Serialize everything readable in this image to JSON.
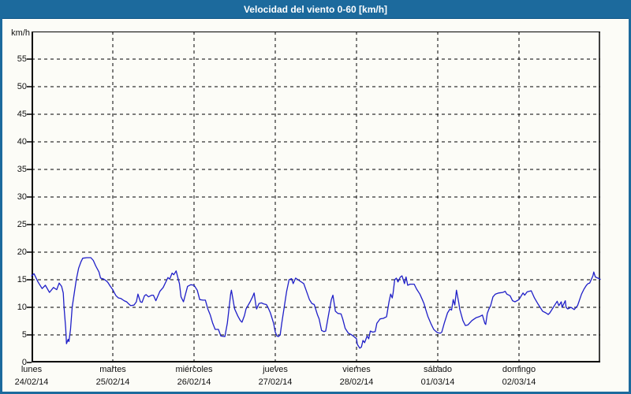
{
  "window": {
    "title": "Velocidad del viento 0-60 [km/h]",
    "accent_color": "#1c6a9d",
    "background_color": "#fcfcf7"
  },
  "chart_data": {
    "type": "line",
    "title": "Velocidad del viento 0-60 [km/h]",
    "ylabel": "km/h",
    "ylim": [
      0,
      60
    ],
    "yticks": [
      0,
      5,
      10,
      15,
      20,
      25,
      30,
      35,
      40,
      45,
      50,
      55
    ],
    "grid": {
      "style": "dashed",
      "color": "#000000",
      "horizontal": true,
      "vertical": true
    },
    "legend": "none",
    "x_axis": {
      "unit": "days",
      "range": [
        0,
        7
      ],
      "day_labels": [
        {
          "name": "lunes",
          "date": "24/02/14"
        },
        {
          "name": "martes",
          "date": "25/02/14"
        },
        {
          "name": "miércoles",
          "date": "26/02/14"
        },
        {
          "name": "jueves",
          "date": "27/02/14"
        },
        {
          "name": "viernes",
          "date": "28/02/14"
        },
        {
          "name": "sábado",
          "date": "01/03/14"
        },
        {
          "name": "domingo",
          "date": "02/03/14"
        }
      ]
    },
    "series": [
      {
        "name": "Velocidad del viento",
        "color": "#1f1fc8",
        "points": [
          [
            0.0,
            15.7
          ],
          [
            0.03,
            16.1
          ],
          [
            0.08,
            14.6
          ],
          [
            0.13,
            13.4
          ],
          [
            0.17,
            14.0
          ],
          [
            0.22,
            12.7
          ],
          [
            0.27,
            13.6
          ],
          [
            0.31,
            13.2
          ],
          [
            0.34,
            14.4
          ],
          [
            0.37,
            13.8
          ],
          [
            0.39,
            12.6
          ],
          [
            0.4,
            10.0
          ],
          [
            0.42,
            6.2
          ],
          [
            0.43,
            3.4
          ],
          [
            0.45,
            4.2
          ],
          [
            0.46,
            3.8
          ],
          [
            0.48,
            6.0
          ],
          [
            0.5,
            10.0
          ],
          [
            0.53,
            13.0
          ],
          [
            0.55,
            15.0
          ],
          [
            0.58,
            17.1
          ],
          [
            0.61,
            18.3
          ],
          [
            0.63,
            18.9
          ],
          [
            0.68,
            19.0
          ],
          [
            0.73,
            19.0
          ],
          [
            0.76,
            18.5
          ],
          [
            0.79,
            17.5
          ],
          [
            0.83,
            16.4
          ],
          [
            0.85,
            15.3
          ],
          [
            0.89,
            15.1
          ],
          [
            0.92,
            14.8
          ],
          [
            0.94,
            14.5
          ],
          [
            0.97,
            13.8
          ],
          [
            1.0,
            13.2
          ],
          [
            1.02,
            12.6
          ],
          [
            1.04,
            12.1
          ],
          [
            1.07,
            11.7
          ],
          [
            1.1,
            11.6
          ],
          [
            1.14,
            11.2
          ],
          [
            1.17,
            11.0
          ],
          [
            1.19,
            10.7
          ],
          [
            1.22,
            10.3
          ],
          [
            1.26,
            10.4
          ],
          [
            1.29,
            11.0
          ],
          [
            1.31,
            12.4
          ],
          [
            1.34,
            11.0
          ],
          [
            1.36,
            10.9
          ],
          [
            1.39,
            12.1
          ],
          [
            1.41,
            12.3
          ],
          [
            1.44,
            11.9
          ],
          [
            1.48,
            12.2
          ],
          [
            1.5,
            12.2
          ],
          [
            1.53,
            11.2
          ],
          [
            1.58,
            12.9
          ],
          [
            1.62,
            13.6
          ],
          [
            1.65,
            14.5
          ],
          [
            1.68,
            15.4
          ],
          [
            1.7,
            15.1
          ],
          [
            1.73,
            16.2
          ],
          [
            1.75,
            15.9
          ],
          [
            1.78,
            16.6
          ],
          [
            1.82,
            14.3
          ],
          [
            1.84,
            11.9
          ],
          [
            1.87,
            11.0
          ],
          [
            1.92,
            13.8
          ],
          [
            1.96,
            14.1
          ],
          [
            2.0,
            14.0
          ],
          [
            2.04,
            13.1
          ],
          [
            2.07,
            11.4
          ],
          [
            2.11,
            11.3
          ],
          [
            2.14,
            11.3
          ],
          [
            2.17,
            9.7
          ],
          [
            2.2,
            8.6
          ],
          [
            2.23,
            7.1
          ],
          [
            2.26,
            6.0
          ],
          [
            2.3,
            6.0
          ],
          [
            2.33,
            4.8
          ],
          [
            2.38,
            4.7
          ],
          [
            2.41,
            7.1
          ],
          [
            2.43,
            9.7
          ],
          [
            2.45,
            12.4
          ],
          [
            2.46,
            13.1
          ],
          [
            2.49,
            10.5
          ],
          [
            2.5,
            9.7
          ],
          [
            2.54,
            8.4
          ],
          [
            2.57,
            7.6
          ],
          [
            2.59,
            7.3
          ],
          [
            2.62,
            8.5
          ],
          [
            2.64,
            9.7
          ],
          [
            2.69,
            11.0
          ],
          [
            2.72,
            11.9
          ],
          [
            2.74,
            12.6
          ],
          [
            2.76,
            10.5
          ],
          [
            2.77,
            9.7
          ],
          [
            2.8,
            10.7
          ],
          [
            2.83,
            10.8
          ],
          [
            2.86,
            10.6
          ],
          [
            2.89,
            10.5
          ],
          [
            2.91,
            10.0
          ],
          [
            2.94,
            9.0
          ],
          [
            2.98,
            7.1
          ],
          [
            3.0,
            5.5
          ],
          [
            3.02,
            4.8
          ],
          [
            3.04,
            4.7
          ],
          [
            3.06,
            5.0
          ],
          [
            3.08,
            7.1
          ],
          [
            3.11,
            10.0
          ],
          [
            3.14,
            12.9
          ],
          [
            3.17,
            15.0
          ],
          [
            3.2,
            15.2
          ],
          [
            3.22,
            14.3
          ],
          [
            3.25,
            15.3
          ],
          [
            3.28,
            15.0
          ],
          [
            3.35,
            14.3
          ],
          [
            3.38,
            13.1
          ],
          [
            3.42,
            11.4
          ],
          [
            3.45,
            10.7
          ],
          [
            3.48,
            10.5
          ],
          [
            3.52,
            8.6
          ],
          [
            3.54,
            7.9
          ],
          [
            3.57,
            5.8
          ],
          [
            3.6,
            5.6
          ],
          [
            3.62,
            5.7
          ],
          [
            3.66,
            9.0
          ],
          [
            3.69,
            11.4
          ],
          [
            3.71,
            12.2
          ],
          [
            3.74,
            9.3
          ],
          [
            3.77,
            8.9
          ],
          [
            3.81,
            8.8
          ],
          [
            3.83,
            7.9
          ],
          [
            3.86,
            6.2
          ],
          [
            3.9,
            5.3
          ],
          [
            3.93,
            5.1
          ],
          [
            3.96,
            4.8
          ],
          [
            4.0,
            4.3
          ],
          [
            4.01,
            3.3
          ],
          [
            4.04,
            2.6
          ],
          [
            4.06,
            2.8
          ],
          [
            4.08,
            4.0
          ],
          [
            4.1,
            3.6
          ],
          [
            4.13,
            4.8
          ],
          [
            4.15,
            4.3
          ],
          [
            4.17,
            5.7
          ],
          [
            4.2,
            5.5
          ],
          [
            4.23,
            5.6
          ],
          [
            4.25,
            7.1
          ],
          [
            4.29,
            7.9
          ],
          [
            4.33,
            8.0
          ],
          [
            4.37,
            8.3
          ],
          [
            4.4,
            11.0
          ],
          [
            4.42,
            12.4
          ],
          [
            4.44,
            11.7
          ],
          [
            4.45,
            12.6
          ],
          [
            4.47,
            15.0
          ],
          [
            4.49,
            15.3
          ],
          [
            4.51,
            14.6
          ],
          [
            4.54,
            15.5
          ],
          [
            4.56,
            15.7
          ],
          [
            4.59,
            14.3
          ],
          [
            4.61,
            15.5
          ],
          [
            4.63,
            14.0
          ],
          [
            4.66,
            14.2
          ],
          [
            4.71,
            14.2
          ],
          [
            4.74,
            13.3
          ],
          [
            4.78,
            12.4
          ],
          [
            4.81,
            11.4
          ],
          [
            4.83,
            10.7
          ],
          [
            4.85,
            9.7
          ],
          [
            4.88,
            8.3
          ],
          [
            4.92,
            6.9
          ],
          [
            4.95,
            6.0
          ],
          [
            4.98,
            5.6
          ],
          [
            5.0,
            5.4
          ],
          [
            5.03,
            5.3
          ],
          [
            5.05,
            5.5
          ],
          [
            5.08,
            7.1
          ],
          [
            5.12,
            9.0
          ],
          [
            5.15,
            9.7
          ],
          [
            5.17,
            9.5
          ],
          [
            5.19,
            11.4
          ],
          [
            5.21,
            10.4
          ],
          [
            5.23,
            13.1
          ],
          [
            5.26,
            10.7
          ],
          [
            5.27,
            9.7
          ],
          [
            5.31,
            7.6
          ],
          [
            5.34,
            6.7
          ],
          [
            5.37,
            6.8
          ],
          [
            5.42,
            7.6
          ],
          [
            5.47,
            8.1
          ],
          [
            5.51,
            8.3
          ],
          [
            5.55,
            8.6
          ],
          [
            5.58,
            7.1
          ],
          [
            5.59,
            6.9
          ],
          [
            5.61,
            8.9
          ],
          [
            5.63,
            9.7
          ],
          [
            5.65,
            10.3
          ],
          [
            5.68,
            11.9
          ],
          [
            5.71,
            12.4
          ],
          [
            5.75,
            12.6
          ],
          [
            5.8,
            12.7
          ],
          [
            5.83,
            12.9
          ],
          [
            5.85,
            12.4
          ],
          [
            5.89,
            12.1
          ],
          [
            5.92,
            11.2
          ],
          [
            5.95,
            11.0
          ],
          [
            6.0,
            11.4
          ],
          [
            6.02,
            11.9
          ],
          [
            6.05,
            12.6
          ],
          [
            6.07,
            12.2
          ],
          [
            6.1,
            12.8
          ],
          [
            6.15,
            13.0
          ],
          [
            6.19,
            11.7
          ],
          [
            6.23,
            10.7
          ],
          [
            6.26,
            10.0
          ],
          [
            6.29,
            9.3
          ],
          [
            6.33,
            9.0
          ],
          [
            6.36,
            8.7
          ],
          [
            6.38,
            9.0
          ],
          [
            6.41,
            9.7
          ],
          [
            6.44,
            10.4
          ],
          [
            6.47,
            11.1
          ],
          [
            6.49,
            10.3
          ],
          [
            6.52,
            11.0
          ],
          [
            6.53,
            10.0
          ],
          [
            6.57,
            11.2
          ],
          [
            6.58,
            10.0
          ],
          [
            6.6,
            9.7
          ],
          [
            6.64,
            10.0
          ],
          [
            6.68,
            9.6
          ],
          [
            6.72,
            10.3
          ],
          [
            6.73,
            10.7
          ],
          [
            6.77,
            12.4
          ],
          [
            6.8,
            13.3
          ],
          [
            6.83,
            14.0
          ],
          [
            6.85,
            14.3
          ],
          [
            6.87,
            14.4
          ],
          [
            6.91,
            15.7
          ],
          [
            6.92,
            16.4
          ],
          [
            6.94,
            15.5
          ],
          [
            6.97,
            15.3
          ],
          [
            7.0,
            15.1
          ]
        ]
      }
    ]
  }
}
